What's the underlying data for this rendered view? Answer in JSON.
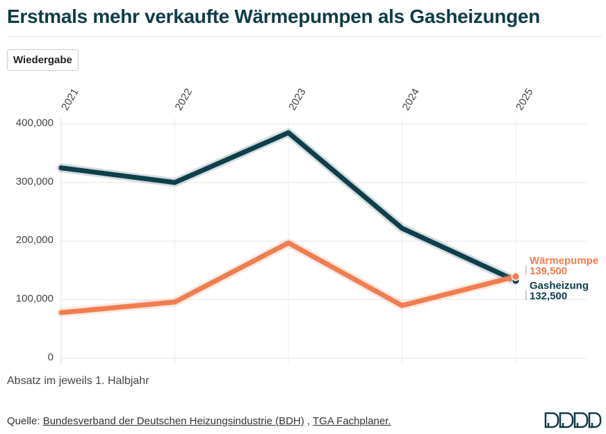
{
  "title": "Erstmals mehr verkaufte Wärmepumpen als Gasheizungen",
  "button": "Wiedergabe",
  "chart_data": {
    "type": "line",
    "x": [
      2021,
      2022,
      2023,
      2024,
      2025
    ],
    "xlim": [
      2021,
      2025
    ],
    "xticks": [
      2021,
      2022,
      2023,
      2024,
      2025
    ],
    "ylim": [
      0,
      410000
    ],
    "yticks": [
      0,
      {
        "value": 100000,
        "label": "100,000"
      },
      {
        "value": 200000,
        "label": "200,000"
      },
      {
        "value": 300000,
        "label": "300,000"
      },
      {
        "value": 400000,
        "label": "400,000"
      }
    ],
    "grid": true,
    "series": [
      {
        "name": "Gasheizung",
        "color": "#0e3f4b",
        "values": [
          325000,
          300000,
          385000,
          222000,
          132500
        ],
        "value_labels": [
          null,
          null,
          null,
          null,
          "132,500"
        ]
      },
      {
        "name": "Wärmepumpe",
        "color": "#f07d4f",
        "values": [
          78000,
          96000,
          197000,
          90000,
          139500
        ],
        "value_labels": [
          null,
          null,
          null,
          null,
          "139,500"
        ]
      }
    ],
    "note": "Absatz im jeweils 1. Halbjahr"
  },
  "source": {
    "label": "Quelle:",
    "links": [
      "Bundesverband der Deutschen Heizungsindustrie (BDH)",
      "TGA Fachplaner."
    ],
    "separator": ","
  }
}
